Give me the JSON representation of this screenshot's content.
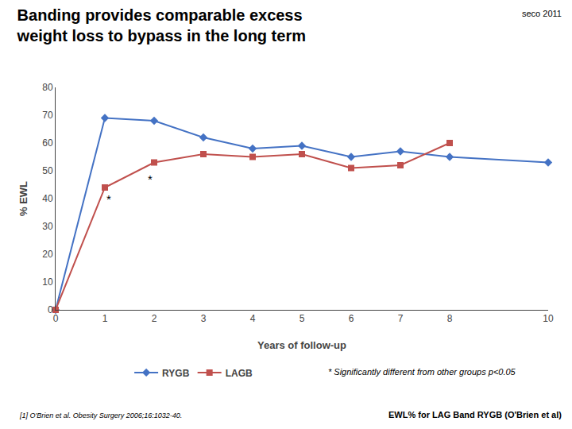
{
  "chart_data": {
    "type": "line",
    "title": [
      "Banding provides comparable excess",
      "weight loss to bypass in the long term"
    ],
    "x": [
      0,
      1,
      2,
      3,
      4,
      5,
      6,
      7,
      8,
      10
    ],
    "series": [
      {
        "name": "RYGB",
        "color": "#4472C4",
        "marker": "diamond",
        "values": [
          0,
          69,
          68,
          62,
          58,
          59,
          55,
          57,
          55,
          53
        ]
      },
      {
        "name": "LAGB",
        "color": "#C0504D",
        "marker": "square",
        "values": [
          0,
          44,
          53,
          56,
          55,
          56,
          51,
          52,
          60,
          null
        ]
      }
    ],
    "xlabel": "Years of follow-up",
    "ylabel": "% EWL",
    "xlim": [
      0,
      10
    ],
    "xticks": [
      0,
      1,
      2,
      3,
      4,
      5,
      6,
      7,
      8,
      10
    ],
    "ylim": [
      0,
      80
    ],
    "yticks": [
      0,
      10,
      20,
      30,
      40,
      50,
      60,
      70,
      80
    ],
    "grid": false,
    "legend": "bottom",
    "annotations": [
      {
        "text": "*",
        "x": 1.08,
        "y": 40
      },
      {
        "text": "*",
        "x": 1.92,
        "y": 47
      },
      {
        "text": "seco 2011"
      },
      {
        "text": "* Significantly different from other groups p<0.05"
      },
      {
        "text": "[1] O'Brien et al. Obesity Surgery 2006;16:1032-40."
      },
      {
        "text": "EWL% for LAG Band RYGB (O'Brien et al)"
      }
    ]
  }
}
